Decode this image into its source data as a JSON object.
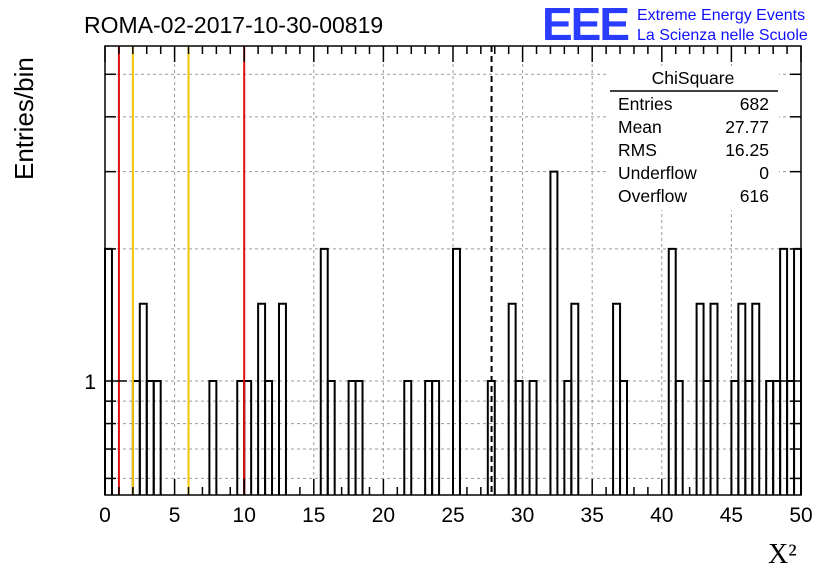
{
  "chart_data": {
    "type": "histogram",
    "title": "ROMA-02-2017-10-30-00819",
    "xlabel": "X²",
    "ylabel": "Entries/bin",
    "xlim": [
      0,
      50
    ],
    "ylim": [
      0.55,
      5.8
    ],
    "log_y": true,
    "grid": true,
    "x_ticks": [
      "0",
      "5",
      "10",
      "15",
      "20",
      "25",
      "30",
      "35",
      "40",
      "45",
      "50"
    ],
    "y_ticks": [
      "1"
    ],
    "bin_width": 0.5,
    "bins": [
      [
        0.0,
        0.5,
        2
      ],
      [
        0.5,
        1.0,
        0
      ],
      [
        1.0,
        1.5,
        0
      ],
      [
        1.5,
        2.0,
        0
      ],
      [
        2.0,
        2.5,
        1
      ],
      [
        2.5,
        3.0,
        1.5
      ],
      [
        3.0,
        3.5,
        1
      ],
      [
        3.5,
        4.0,
        1
      ],
      [
        4.0,
        4.5,
        0
      ],
      [
        4.5,
        5.0,
        0
      ],
      [
        5.0,
        5.5,
        0
      ],
      [
        5.5,
        6.0,
        0
      ],
      [
        6.0,
        6.5,
        0
      ],
      [
        6.5,
        7.0,
        0
      ],
      [
        7.0,
        7.5,
        0
      ],
      [
        7.5,
        8.0,
        1
      ],
      [
        8.0,
        8.5,
        0
      ],
      [
        8.5,
        9.0,
        0
      ],
      [
        9.0,
        9.5,
        0
      ],
      [
        9.5,
        10.0,
        1
      ],
      [
        10.0,
        10.5,
        1
      ],
      [
        10.5,
        11.0,
        0
      ],
      [
        11.0,
        11.5,
        1.5
      ],
      [
        11.5,
        12.0,
        1
      ],
      [
        12.0,
        12.5,
        0
      ],
      [
        12.5,
        13.0,
        1.5
      ],
      [
        13.0,
        13.5,
        0
      ],
      [
        13.5,
        14.0,
        0
      ],
      [
        14.0,
        14.5,
        0
      ],
      [
        14.5,
        15.0,
        0
      ],
      [
        15.0,
        15.5,
        0
      ],
      [
        15.5,
        16.0,
        2
      ],
      [
        16.0,
        16.5,
        1
      ],
      [
        16.5,
        17.0,
        0
      ],
      [
        17.0,
        17.5,
        0
      ],
      [
        17.5,
        18.0,
        1
      ],
      [
        18.0,
        18.5,
        1
      ],
      [
        18.5,
        19.0,
        0
      ],
      [
        19.0,
        19.5,
        0
      ],
      [
        19.5,
        20.0,
        0
      ],
      [
        20.0,
        20.5,
        0
      ],
      [
        20.5,
        21.0,
        0
      ],
      [
        21.0,
        21.5,
        0
      ],
      [
        21.5,
        22.0,
        1
      ],
      [
        22.0,
        22.5,
        0
      ],
      [
        22.5,
        23.0,
        0
      ],
      [
        23.0,
        23.5,
        1
      ],
      [
        23.5,
        24.0,
        1
      ],
      [
        24.0,
        24.5,
        0
      ],
      [
        24.5,
        25.0,
        0
      ],
      [
        25.0,
        25.5,
        2
      ],
      [
        25.5,
        26.0,
        0
      ],
      [
        26.0,
        26.5,
        0
      ],
      [
        26.5,
        27.0,
        0
      ],
      [
        27.0,
        27.5,
        0
      ],
      [
        27.5,
        28.0,
        1
      ],
      [
        28.0,
        28.5,
        0
      ],
      [
        28.5,
        29.0,
        0
      ],
      [
        29.0,
        29.5,
        1.5
      ],
      [
        29.5,
        30.0,
        1
      ],
      [
        30.0,
        30.5,
        0
      ],
      [
        30.5,
        31.0,
        1
      ],
      [
        31.0,
        31.5,
        0
      ],
      [
        31.5,
        32.0,
        0
      ],
      [
        32.0,
        32.5,
        3
      ],
      [
        32.5,
        33.0,
        0
      ],
      [
        33.0,
        33.5,
        1
      ],
      [
        33.5,
        34.0,
        1.5
      ],
      [
        34.0,
        34.5,
        0
      ],
      [
        34.5,
        35.0,
        0
      ],
      [
        35.0,
        35.5,
        0
      ],
      [
        35.5,
        36.0,
        0
      ],
      [
        36.0,
        36.5,
        0
      ],
      [
        36.5,
        37.0,
        1.5
      ],
      [
        37.0,
        37.5,
        1
      ],
      [
        37.5,
        38.0,
        0
      ],
      [
        38.0,
        38.5,
        0
      ],
      [
        38.5,
        39.0,
        0
      ],
      [
        39.0,
        39.5,
        0
      ],
      [
        39.5,
        40.0,
        0
      ],
      [
        40.0,
        40.5,
        0
      ],
      [
        40.5,
        41.0,
        2
      ],
      [
        41.0,
        41.5,
        1
      ],
      [
        41.5,
        42.0,
        0
      ],
      [
        42.0,
        42.5,
        0
      ],
      [
        42.5,
        43.0,
        1.5
      ],
      [
        43.0,
        43.5,
        1
      ],
      [
        43.5,
        44.0,
        1.5
      ],
      [
        44.0,
        44.5,
        0
      ],
      [
        44.5,
        45.0,
        0
      ],
      [
        45.0,
        45.5,
        1
      ],
      [
        45.5,
        46.0,
        1.5
      ],
      [
        46.0,
        46.5,
        1
      ],
      [
        46.5,
        47.0,
        1.5
      ],
      [
        47.0,
        47.5,
        0
      ],
      [
        47.5,
        48.0,
        1
      ],
      [
        48.0,
        48.5,
        1
      ],
      [
        48.5,
        49.0,
        2
      ],
      [
        49.0,
        49.5,
        1
      ],
      [
        49.5,
        50.0,
        2
      ]
    ],
    "vertical_lines": [
      {
        "x": 1,
        "color": "#dd1111",
        "style": "solid"
      },
      {
        "x": 2,
        "color": "#f5c400",
        "style": "solid"
      },
      {
        "x": 6,
        "color": "#f5c400",
        "style": "solid"
      },
      {
        "x": 10,
        "color": "#dd1111",
        "style": "solid"
      },
      {
        "x": 27.77,
        "color": "#000000",
        "style": "dashed"
      }
    ],
    "stats_box": {
      "name": "ChiSquare",
      "rows": [
        {
          "label": "Entries",
          "value": "682"
        },
        {
          "label": "Mean",
          "value": "27.77"
        },
        {
          "label": "RMS",
          "value": "16.25"
        },
        {
          "label": "Underflow",
          "value": "0"
        },
        {
          "label": "Overflow",
          "value": "616"
        }
      ]
    }
  },
  "logo": {
    "letters": "EEE",
    "line1": "Extreme Energy Events",
    "line2": "La Scienza nelle Scuole"
  }
}
